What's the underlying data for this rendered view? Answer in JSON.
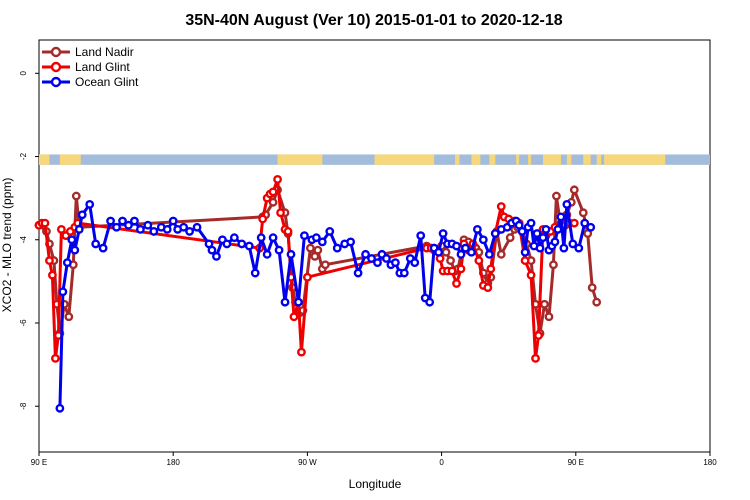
{
  "chart_data": {
    "type": "line",
    "title": "35N-40N August (Ver 10)   2015-01-01 to 2020-12-18",
    "xlabel": "Longitude",
    "ylabel": "XCO2 - MLO trend (ppm)",
    "xlim": [
      90,
      540
    ],
    "ylim": [
      -9.1,
      0.8
    ],
    "x_ticks": [
      {
        "value": 90,
        "label": "90 E"
      },
      {
        "value": 180,
        "label": "180"
      },
      {
        "value": 270,
        "label": "90 W"
      },
      {
        "value": 360,
        "label": "0"
      },
      {
        "value": 450,
        "label": "90 E"
      },
      {
        "value": 540,
        "label": "180"
      }
    ],
    "y_ticks": [
      {
        "value": 0,
        "label": "0"
      },
      {
        "value": -2,
        "label": "-2"
      },
      {
        "value": -4,
        "label": "-4"
      },
      {
        "value": -6,
        "label": "-6"
      },
      {
        "value": -8,
        "label": "-8"
      }
    ],
    "land_strip": {
      "y_top": -1.95,
      "y_bottom": -2.2
    },
    "legend_position": "top-left",
    "series": [
      {
        "name": "Land Nadir",
        "color": "#a52a2a",
        "x": [
          90,
          95,
          97,
          100,
          102,
          104,
          107,
          110,
          113,
          115,
          117,
          240,
          242,
          247,
          250,
          255,
          257,
          260,
          262,
          265,
          267,
          272,
          275,
          277,
          280,
          282,
          350,
          355,
          360,
          363,
          366,
          369,
          371,
          375,
          378,
          381,
          383,
          385,
          388,
          391,
          393,
          397,
          400,
          406,
          409,
          411,
          414,
          417,
          420,
          423,
          426,
          429,
          432,
          435,
          437,
          440,
          442,
          444,
          447,
          449,
          455,
          458,
          461,
          464
        ],
        "y": [
          -3.65,
          -3.8,
          -4.1,
          -4.5,
          -5.55,
          -6.25,
          -5.55,
          -5.85,
          -4.6,
          -2.95,
          -3.7,
          -3.45,
          -3.4,
          -3.1,
          -2.8,
          -3.35,
          -3.85,
          -5.15,
          -5.5,
          -5.75,
          -5.7,
          -4.2,
          -4.4,
          -4.25,
          -4.7,
          -4.6,
          -4.15,
          -4.25,
          -4.15,
          -4.3,
          -4.5,
          -4.75,
          -4.7,
          -4.0,
          -4.05,
          -4.2,
          -4.2,
          -4.3,
          -4.8,
          -5.05,
          -4.9,
          -3.8,
          -4.35,
          -3.95,
          -3.75,
          -3.7,
          -3.8,
          -4.1,
          -4.5,
          -5.55,
          -6.25,
          -5.55,
          -5.85,
          -4.6,
          -2.95,
          -3.7,
          -3.45,
          -3.4,
          -3.1,
          -2.8,
          -3.35,
          -3.85,
          -5.15,
          -5.5
        ],
        "legend_label": "Land Nadir"
      },
      {
        "name": "Land Glint",
        "color": "#ee0000",
        "x": [
          90,
          92,
          94,
          97,
          99,
          101,
          103,
          105,
          108,
          111,
          114,
          116,
          238,
          240,
          243,
          245,
          247,
          250,
          252,
          255,
          257,
          259,
          261,
          264,
          266,
          270,
          350,
          353,
          356,
          359,
          361,
          364,
          367,
          370,
          373,
          375,
          378,
          381,
          385,
          388,
          391,
          393,
          396,
          400,
          402,
          405,
          407,
          409,
          412,
          416,
          420,
          423,
          425,
          428,
          430,
          433,
          436,
          440,
          443,
          446,
          449
        ],
        "y": [
          -3.65,
          -3.6,
          -3.6,
          -4.5,
          -4.85,
          -6.85,
          -6.3,
          -3.75,
          -3.9,
          -3.8,
          -3.7,
          -3.6,
          -4.2,
          -3.5,
          -3.0,
          -2.9,
          -2.85,
          -2.55,
          -3.35,
          -3.75,
          -3.8,
          -4.9,
          -5.85,
          -5.5,
          -6.7,
          -4.9,
          -4.2,
          -4.2,
          -4.25,
          -4.45,
          -4.75,
          -4.75,
          -4.75,
          -5.05,
          -4.7,
          -4.1,
          -4.25,
          -4.1,
          -4.5,
          -5.1,
          -5.15,
          -4.7,
          -3.85,
          -3.2,
          -3.45,
          -3.5,
          -3.6,
          -3.55,
          -3.6,
          -4.5,
          -4.85,
          -6.85,
          -6.3,
          -3.75,
          -3.9,
          -3.8,
          -3.7,
          -3.6,
          -3.65,
          -3.6,
          -3.6
        ],
        "legend_label": "Land Glint"
      },
      {
        "name": "Ocean Glint",
        "color": "#0000ee",
        "x": [
          104,
          106,
          109,
          112,
          114,
          117,
          119,
          124,
          128,
          133,
          138,
          142,
          146,
          150,
          154,
          158,
          163,
          167,
          172,
          176,
          180,
          183,
          187,
          191,
          196,
          204,
          206,
          209,
          213,
          216,
          221,
          226,
          231,
          235,
          239,
          243,
          247,
          251,
          255,
          259,
          264,
          268,
          273,
          276,
          280,
          285,
          290,
          295,
          299,
          304,
          309,
          313,
          317,
          320,
          323,
          326,
          329,
          332,
          335,
          339,
          342,
          346,
          349,
          352,
          355,
          358,
          361,
          364,
          367,
          370,
          373,
          376,
          380,
          384,
          388,
          392,
          396,
          400,
          404,
          407,
          410,
          412,
          414,
          416,
          418,
          420,
          422,
          424,
          426,
          428,
          430,
          432,
          434,
          436,
          438,
          440,
          442,
          444,
          448,
          452,
          456,
          460
        ],
        "y": [
          -8.05,
          -5.25,
          -4.55,
          -4.0,
          -4.25,
          -3.75,
          -3.4,
          -3.15,
          -4.1,
          -4.2,
          -3.55,
          -3.7,
          -3.55,
          -3.65,
          -3.55,
          -3.75,
          -3.65,
          -3.8,
          -3.7,
          -3.75,
          -3.55,
          -3.75,
          -3.7,
          -3.8,
          -3.7,
          -4.1,
          -4.25,
          -4.4,
          -4.0,
          -4.1,
          -3.95,
          -4.1,
          -4.15,
          -4.8,
          -3.95,
          -4.35,
          -3.95,
          -4.25,
          -5.5,
          -4.35,
          -5.5,
          -3.9,
          -4.0,
          -3.95,
          -4.05,
          -3.8,
          -4.2,
          -4.1,
          -4.05,
          -4.8,
          -4.35,
          -4.45,
          -4.55,
          -4.35,
          -4.45,
          -4.6,
          -4.55,
          -4.8,
          -4.8,
          -4.45,
          -4.55,
          -3.9,
          -5.4,
          -5.5,
          -4.2,
          -4.3,
          -3.85,
          -4.1,
          -4.1,
          -4.15,
          -4.35,
          -4.2,
          -4.3,
          -3.75,
          -4.0,
          -4.35,
          -3.85,
          -3.75,
          -3.7,
          -3.6,
          -3.55,
          -3.65,
          -3.8,
          -4.3,
          -3.7,
          -3.6,
          -4.15,
          -3.85,
          -4.2,
          -3.95,
          -3.75,
          -4.25,
          -4.15,
          -4.05,
          -3.75,
          -3.45,
          -4.2,
          -3.15,
          -4.1,
          -4.2,
          -3.6,
          -3.7
        ],
        "legend_label": "Ocean Glint"
      }
    ]
  }
}
